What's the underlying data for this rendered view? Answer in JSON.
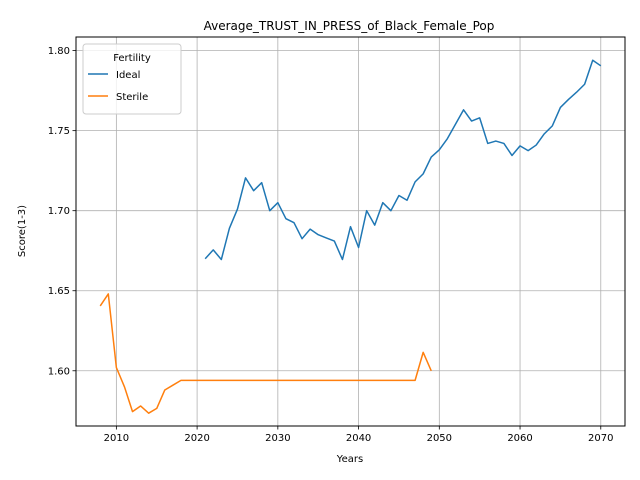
{
  "chart_data": {
    "type": "line",
    "title": "Average_TRUST_IN_PRESS_of_Black_Female_Pop",
    "xlabel": "Years",
    "ylabel": "Score(1-3)",
    "xlim": [
      2005,
      2073
    ],
    "ylim": [
      1.5655,
      1.8085
    ],
    "x_ticks": [
      2010,
      2020,
      2030,
      2040,
      2050,
      2060,
      2070
    ],
    "y_ticks": [
      1.6,
      1.65,
      1.7,
      1.75,
      1.8
    ],
    "y_tick_format": 2,
    "grid": true,
    "legend": {
      "title": "Fertility",
      "placement": "top-left"
    },
    "series": [
      {
        "name": "Ideal",
        "color": "#1f77b4",
        "x": [
          2021,
          2022,
          2023,
          2024,
          2025,
          2026,
          2027,
          2028,
          2029,
          2030,
          2031,
          2032,
          2033,
          2034,
          2035,
          2036,
          2037,
          2038,
          2039,
          2040,
          2041,
          2042,
          2043,
          2044,
          2045,
          2046,
          2047,
          2048,
          2049,
          2050,
          2051,
          2052,
          2053,
          2054,
          2055,
          2056,
          2057,
          2058,
          2059,
          2060,
          2061,
          2062,
          2063,
          2064,
          2065,
          2066,
          2067,
          2068,
          2069,
          2070
        ],
        "y": [
          1.67,
          1.6755,
          1.6695,
          1.689,
          1.701,
          1.7205,
          1.7125,
          1.7175,
          1.7,
          1.705,
          1.695,
          1.6925,
          1.6825,
          1.6885,
          1.685,
          1.683,
          1.681,
          1.6695,
          1.69,
          1.677,
          1.7,
          1.691,
          1.705,
          1.7,
          1.7095,
          1.7065,
          1.718,
          1.723,
          1.7335,
          1.738,
          1.745,
          1.754,
          1.763,
          1.756,
          1.758,
          1.742,
          1.7435,
          1.742,
          1.7345,
          1.7405,
          1.7375,
          1.741,
          1.748,
          1.753,
          1.7645,
          1.7695,
          1.774,
          1.779,
          1.794,
          1.7905
        ]
      },
      {
        "name": "Sterile",
        "color": "#ff7f0e",
        "x": [
          2008,
          2009,
          2010,
          2011,
          2012,
          2013,
          2014,
          2015,
          2016,
          2017,
          2018,
          2019,
          2020,
          2021,
          2022,
          2023,
          2024,
          2025,
          2026,
          2027,
          2028,
          2029,
          2030,
          2031,
          2032,
          2033,
          2034,
          2035,
          2036,
          2037,
          2038,
          2039,
          2040,
          2041,
          2042,
          2043,
          2044,
          2045,
          2046,
          2047,
          2048,
          2049
        ],
        "y": [
          1.6405,
          1.648,
          1.602,
          1.59,
          1.5745,
          1.578,
          1.5735,
          1.5765,
          1.588,
          1.591,
          1.594,
          1.594,
          1.594,
          1.594,
          1.594,
          1.594,
          1.594,
          1.594,
          1.594,
          1.594,
          1.594,
          1.594,
          1.594,
          1.594,
          1.594,
          1.594,
          1.594,
          1.594,
          1.594,
          1.594,
          1.594,
          1.594,
          1.594,
          1.594,
          1.594,
          1.594,
          1.594,
          1.594,
          1.594,
          1.594,
          1.6115,
          1.6
        ]
      }
    ]
  }
}
